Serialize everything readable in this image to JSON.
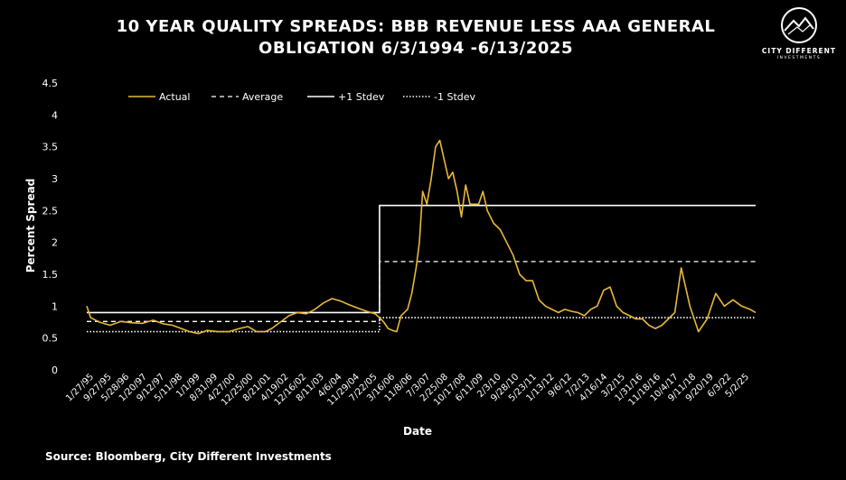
{
  "header": {
    "title_line1": "10 YEAR QUALITY SPREADS: BBB REVENUE LESS AAA GENERAL",
    "title_line2": "OBLIGATION 6/3/1994 -6/13/2025"
  },
  "logo": {
    "name": "CITY DIFFERENT",
    "sub": "INVESTMENTS",
    "icon": "mountain-circle-icon"
  },
  "footer": {
    "source": "Source: Bloomberg, City Different Investments"
  },
  "colors": {
    "actual": "#E8B83A",
    "background": "#000000",
    "lines": "#FFFFFF"
  },
  "chart_data": {
    "type": "line",
    "xlabel": "Date",
    "ylabel": "Percent Spread",
    "ylim": [
      0,
      4.5
    ],
    "yticks": [
      "0",
      "0.5",
      "1",
      "1.5",
      "2",
      "2.5",
      "3",
      "3.5",
      "4",
      "4.5"
    ],
    "xticks": [
      "1/27/95",
      "9/27/95",
      "5/28/96",
      "1/20/97",
      "9/12/97",
      "5/11/98",
      "1/1/99",
      "8/31/99",
      "4/27/00",
      "12/25/00",
      "8/21/01",
      "4/19/02",
      "12/16/02",
      "8/11/03",
      "4/6/04",
      "11/29/04",
      "7/22/05",
      "3/16/06",
      "11/8/06",
      "7/3/07",
      "2/25/08",
      "10/17/08",
      "6/11/09",
      "2/3/10",
      "9/28/10",
      "5/23/11",
      "1/13/12",
      "9/6/12",
      "7/2/13",
      "4/16/14",
      "3/2/15",
      "1/31/16",
      "11/18/16",
      "10/4/17",
      "9/11/18",
      "9/20/19",
      "6/3/22",
      "5/2/25"
    ],
    "legend": [
      "Actual",
      "Average",
      "+1 Stdev",
      "-1 Stdev"
    ],
    "legend_position": "top",
    "series": [
      {
        "name": "Actual",
        "x": [
          1994.42,
          1994.6,
          1995.0,
          1995.5,
          1996.0,
          1996.5,
          1997.0,
          1997.5,
          1998.0,
          1998.4,
          1998.8,
          1999.2,
          1999.6,
          2000.0,
          2000.5,
          2001.0,
          2001.5,
          2001.9,
          2002.3,
          2002.7,
          2003.0,
          2003.4,
          2003.8,
          2004.2,
          2004.6,
          2005.0,
          2005.4,
          2005.8,
          2006.2,
          2006.6,
          2007.0,
          2007.4,
          2007.8,
          2008.0,
          2008.2,
          2008.4,
          2008.6,
          2008.8,
          2009.0,
          2009.15,
          2009.3,
          2009.5,
          2009.7,
          2009.85,
          2010.0,
          2010.2,
          2010.4,
          2010.6,
          2010.8,
          2011.0,
          2011.2,
          2011.4,
          2011.6,
          2011.8,
          2012.0,
          2012.2,
          2012.4,
          2012.6,
          2012.8,
          2013.0,
          2013.3,
          2013.6,
          2013.9,
          2014.2,
          2014.5,
          2014.8,
          2015.1,
          2015.4,
          2015.7,
          2016.0,
          2016.3,
          2016.6,
          2016.9,
          2017.2,
          2017.5,
          2017.8,
          2018.1,
          2018.4,
          2018.7,
          2019.0,
          2019.3,
          2019.6,
          2019.9,
          2020.2,
          2020.35,
          2020.5,
          2020.8,
          2021.1,
          2021.4,
          2021.7,
          2022.0,
          2022.4,
          2022.8,
          2023.2,
          2023.6,
          2024.0,
          2024.4,
          2024.8,
          2025.2,
          2025.45
        ],
        "values": [
          1.0,
          0.82,
          0.75,
          0.7,
          0.76,
          0.74,
          0.73,
          0.78,
          0.72,
          0.7,
          0.65,
          0.6,
          0.57,
          0.62,
          0.6,
          0.6,
          0.65,
          0.68,
          0.6,
          0.6,
          0.65,
          0.75,
          0.85,
          0.9,
          0.88,
          0.95,
          1.05,
          1.12,
          1.08,
          1.02,
          0.97,
          0.92,
          0.88,
          0.82,
          0.75,
          0.65,
          0.62,
          0.6,
          0.85,
          0.9,
          0.95,
          1.2,
          1.6,
          2.0,
          2.8,
          2.6,
          3.0,
          3.5,
          3.6,
          3.3,
          3.0,
          3.1,
          2.8,
          2.4,
          2.9,
          2.6,
          2.6,
          2.6,
          2.8,
          2.5,
          2.3,
          2.2,
          2.0,
          1.8,
          1.5,
          1.4,
          1.4,
          1.1,
          1.0,
          0.95,
          0.9,
          0.95,
          0.92,
          0.9,
          0.85,
          0.95,
          1.0,
          1.25,
          1.3,
          1.0,
          0.9,
          0.85,
          0.8,
          0.8,
          0.75,
          0.7,
          0.65,
          0.7,
          0.8,
          0.9,
          1.6,
          1.0,
          0.6,
          0.8,
          1.2,
          1.0,
          1.1,
          1.0,
          0.95,
          0.9
        ]
      },
      {
        "name": "Average",
        "x": [
          1994.42,
          2008.0,
          2008.0,
          2025.45
        ],
        "values": [
          0.76,
          0.76,
          1.7,
          1.7
        ]
      },
      {
        "name": "+1 Stdev",
        "x": [
          1994.42,
          2008.0,
          2008.0,
          2025.45
        ],
        "values": [
          0.9,
          0.9,
          2.58,
          2.58
        ]
      },
      {
        "name": "-1 Stdev",
        "x": [
          1994.42,
          2008.0,
          2008.0,
          2025.45
        ],
        "values": [
          0.6,
          0.6,
          0.82,
          0.82
        ]
      }
    ]
  }
}
